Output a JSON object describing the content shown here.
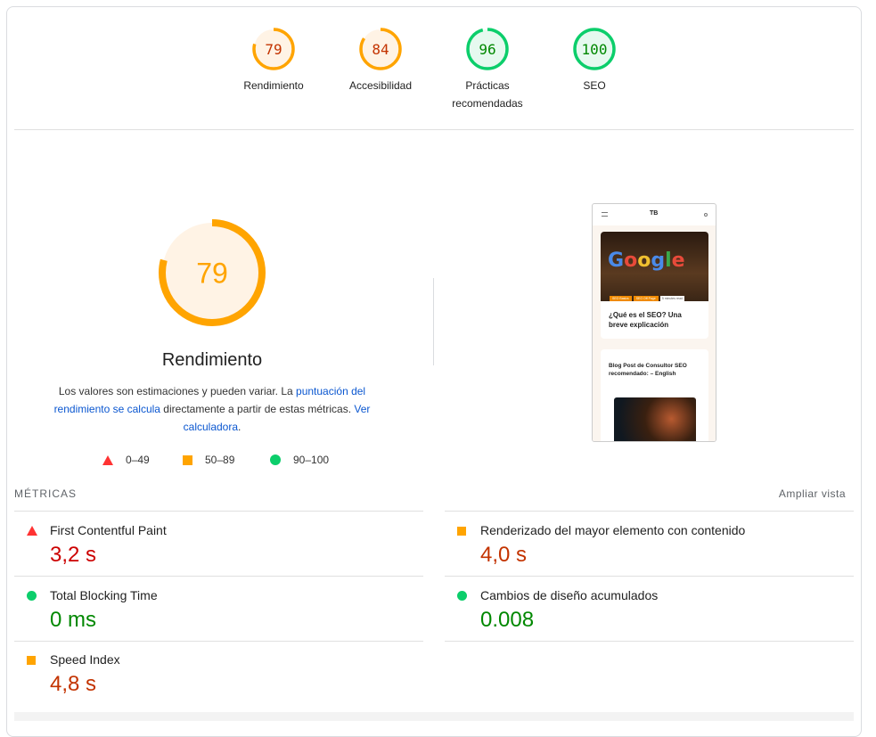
{
  "colors": {
    "fail": "#ff3333",
    "average": "#ffa400",
    "pass": "#0cce6b",
    "fail_text": "#cc0000",
    "average_text": "#c33300",
    "pass_text": "#008800"
  },
  "categories": [
    {
      "label": "Rendimiento",
      "score": 79,
      "rating": "average"
    },
    {
      "label": "Accesibilidad",
      "score": 84,
      "rating": "average"
    },
    {
      "label": "Prácticas recomendadas",
      "score": 96,
      "rating": "pass"
    },
    {
      "label": "SEO",
      "score": 100,
      "rating": "pass"
    }
  ],
  "performance": {
    "score": 79,
    "title": "Rendimiento",
    "desc_1": "Los valores son estimaciones y pueden variar. La ",
    "desc_link_1": "puntuación del rendimiento se calcula",
    "desc_2": " directamente a partir de estas métricas. ",
    "desc_link_2": "Ver calculadora",
    "desc_3": "."
  },
  "legend": [
    {
      "icon": "triangle",
      "range": "0–49"
    },
    {
      "icon": "square",
      "range": "50–89"
    },
    {
      "icon": "circle",
      "range": "90–100"
    }
  ],
  "preview": {
    "logo": "TB",
    "tag_1": "SEO Basics",
    "tag_2": "SEO Off Page",
    "read_time": "5 minutes read",
    "post_1_title": "¿Qué es el SEO? Una breve explicación",
    "post_2_title": "Blog Post de Consultor SEO recomendado: – English"
  },
  "metrics_header": "MÉTRICAS",
  "expand_view": "Ampliar vista",
  "metrics": [
    {
      "title": "First Contentful Paint",
      "value": "3,2 s",
      "rating": "fail"
    },
    {
      "title": "Renderizado del mayor elemento con contenido",
      "value": "4,0 s",
      "rating": "average"
    },
    {
      "title": "Total Blocking Time",
      "value": "0 ms",
      "rating": "pass"
    },
    {
      "title": "Cambios de diseño acumulados",
      "value": "0.008",
      "rating": "pass"
    },
    {
      "title": "Speed Index",
      "value": "4,8 s",
      "rating": "average"
    }
  ]
}
